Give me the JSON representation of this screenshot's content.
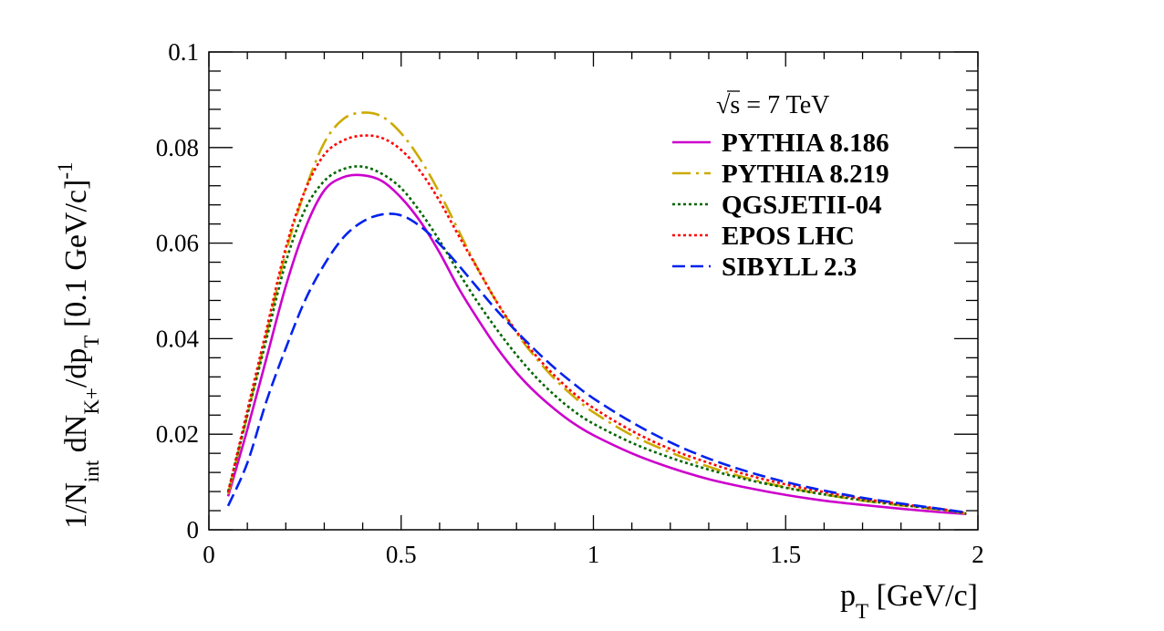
{
  "chart_data": {
    "type": "line",
    "xlabel": {
      "main": "p",
      "sub": "T",
      "rest": " [GeV/c]"
    },
    "ylabel": {
      "p1": "1/N",
      "s1": "int",
      "p2": " dN",
      "s2": "K+",
      "p3": "/dp",
      "s3": "T",
      "p4": " [0.1 GeV/c]",
      "sup": "-1"
    },
    "xlim": [
      0,
      2
    ],
    "ylim": [
      0,
      0.1
    ],
    "xticks": [
      "0",
      "0.5",
      "1",
      "1.5",
      "2"
    ],
    "yticks": [
      "0",
      "0.02",
      "0.04",
      "0.06",
      "0.08",
      "0.1"
    ],
    "legend_header": {
      "root": "√",
      "rest": "s = 7 TeV"
    },
    "legend_position": "top-right",
    "x": [
      0.05,
      0.1,
      0.15,
      0.2,
      0.25,
      0.3,
      0.35,
      0.4,
      0.45,
      0.5,
      0.55,
      0.6,
      0.65,
      0.7,
      0.75,
      0.8,
      0.85,
      0.9,
      0.95,
      1.0,
      1.1,
      1.2,
      1.3,
      1.4,
      1.5,
      1.6,
      1.7,
      1.8,
      1.9,
      1.97
    ],
    "series": [
      {
        "name": "PYTHIA 8.186",
        "color": "#cc00cc",
        "dash": "solid",
        "values": [
          0.007,
          0.021,
          0.036,
          0.051,
          0.063,
          0.071,
          0.0738,
          0.0742,
          0.073,
          0.0695,
          0.0645,
          0.058,
          0.0505,
          0.044,
          0.038,
          0.0329,
          0.0287,
          0.0252,
          0.0222,
          0.0198,
          0.016,
          0.013,
          0.0106,
          0.0088,
          0.0073,
          0.0061,
          0.0052,
          0.0044,
          0.0037,
          0.0033
        ]
      },
      {
        "name": "PYTHIA 8.219",
        "color": "#ccaa00",
        "dash": "longdashdot",
        "values": [
          0.0075,
          0.024,
          0.041,
          0.058,
          0.071,
          0.081,
          0.086,
          0.0873,
          0.0865,
          0.083,
          0.0775,
          0.0705,
          0.0625,
          0.0545,
          0.0475,
          0.0412,
          0.036,
          0.0315,
          0.0278,
          0.0246,
          0.0198,
          0.0162,
          0.0132,
          0.0108,
          0.0089,
          0.0074,
          0.0061,
          0.0051,
          0.0042,
          0.0034
        ]
      },
      {
        "name": "QGSJETII-04",
        "color": "#006600",
        "dash": "dotted",
        "values": [
          0.008,
          0.024,
          0.04,
          0.056,
          0.067,
          0.073,
          0.0755,
          0.076,
          0.0745,
          0.0715,
          0.0665,
          0.0605,
          0.0538,
          0.0475,
          0.0418,
          0.0366,
          0.032,
          0.0281,
          0.0248,
          0.0222,
          0.0182,
          0.0151,
          0.0126,
          0.0105,
          0.0088,
          0.0074,
          0.0062,
          0.0052,
          0.0043,
          0.0034
        ]
      },
      {
        "name": "EPOS LHC",
        "color": "#ff0000",
        "dash": "dotted",
        "values": [
          0.0078,
          0.025,
          0.042,
          0.059,
          0.071,
          0.0785,
          0.0815,
          0.0825,
          0.082,
          0.0795,
          0.075,
          0.0688,
          0.0615,
          0.0545,
          0.0475,
          0.0415,
          0.0365,
          0.0322,
          0.0285,
          0.0255,
          0.0207,
          0.0169,
          0.014,
          0.0115,
          0.0095,
          0.0079,
          0.0065,
          0.0054,
          0.0044,
          0.0035
        ]
      },
      {
        "name": "SIBYLL 2.3",
        "color": "#0022ee",
        "dash": "dashed",
        "values": [
          0.005,
          0.014,
          0.027,
          0.038,
          0.048,
          0.0555,
          0.0612,
          0.0645,
          0.066,
          0.0658,
          0.0635,
          0.0598,
          0.0553,
          0.0505,
          0.0458,
          0.0415,
          0.0375,
          0.0338,
          0.0305,
          0.0275,
          0.0225,
          0.0183,
          0.0149,
          0.0122,
          0.01,
          0.0082,
          0.0067,
          0.0055,
          0.0044,
          0.0036
        ]
      }
    ]
  }
}
